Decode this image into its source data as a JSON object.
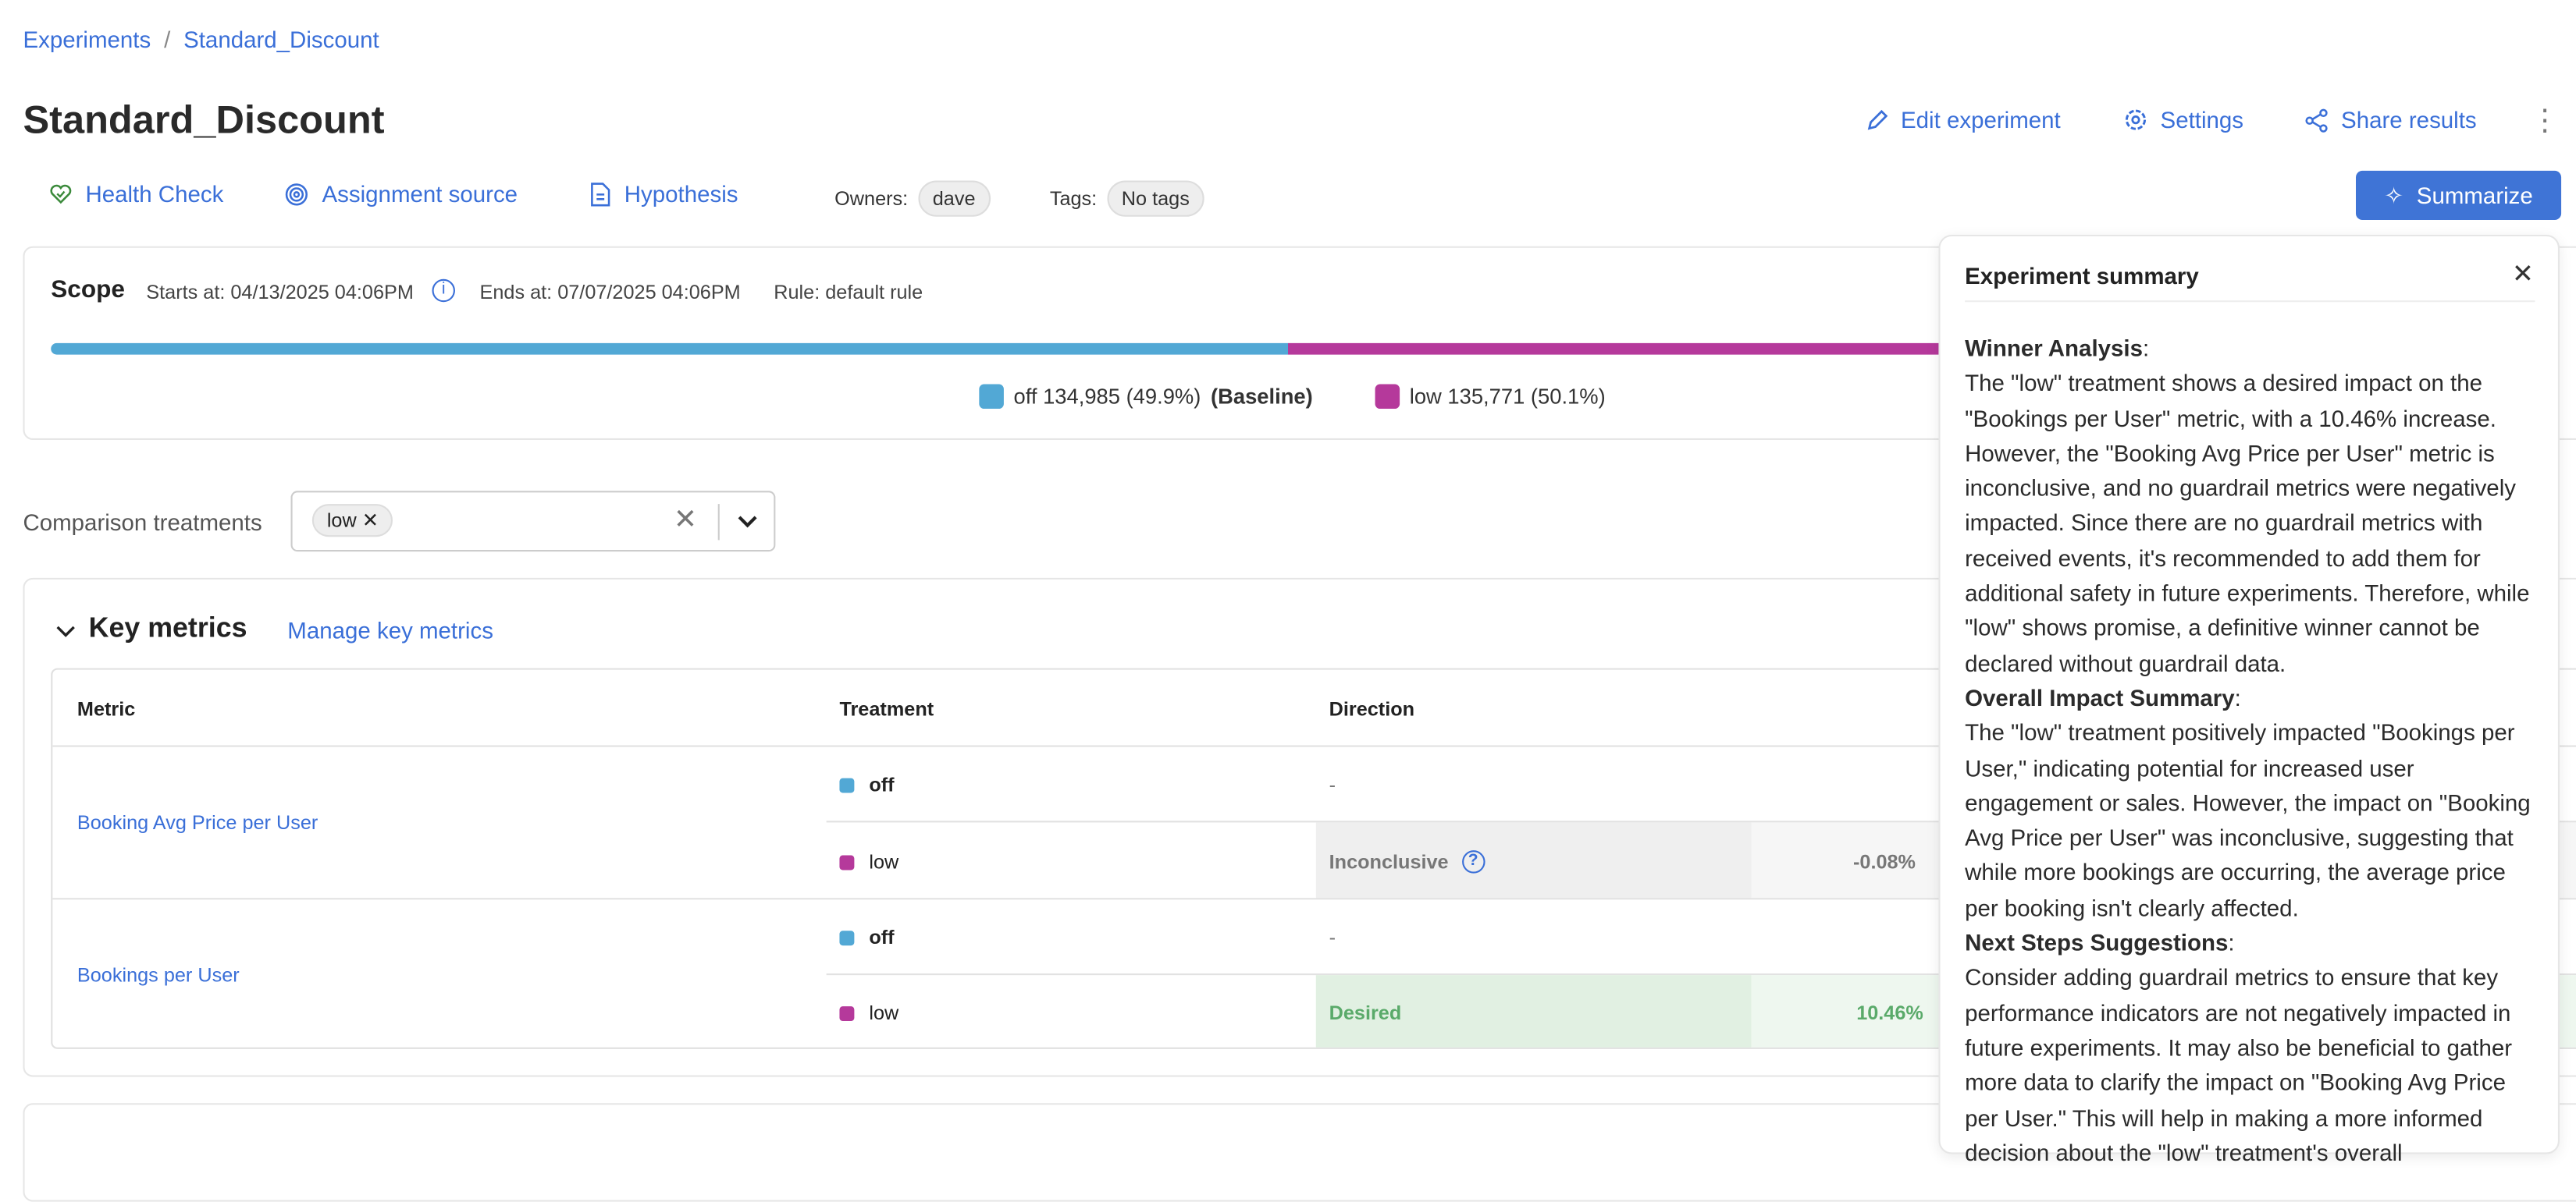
{
  "breadcrumb": {
    "items": [
      "Experiments",
      "Standard_Discount"
    ],
    "separator": "/"
  },
  "header": {
    "title": "Standard_Discount",
    "actions": {
      "edit": "Edit experiment",
      "settings": "Settings",
      "share": "Share results"
    }
  },
  "subnav": {
    "health": "Health Check",
    "assignment": "Assignment source",
    "hypothesis": "Hypothesis",
    "owners_label": "Owners:",
    "owner": "dave",
    "tags_label": "Tags:",
    "tags": "No tags",
    "summarize": "Summarize"
  },
  "scope": {
    "title": "Scope",
    "starts": "Starts at: 04/13/2025 04:06PM",
    "ends": "Ends at: 07/07/2025 04:06PM",
    "rule": "Rule: default rule",
    "treatments": [
      {
        "label": "off 134,985 (49.9%)",
        "baseline": "(Baseline)",
        "share": 49.9,
        "color": "#52a8d5"
      },
      {
        "label": "low 135,771 (50.1%)",
        "share": 50.1,
        "color": "#b5399b"
      }
    ]
  },
  "comparison": {
    "label": "Comparison treatments",
    "selected": "low"
  },
  "key_metrics": {
    "title": "Key metrics",
    "manage": "Manage key metrics",
    "columns": [
      "Metric",
      "Treatment",
      "Direction"
    ],
    "rows": [
      {
        "metric": "Booking Avg Price per User",
        "off_direction": "-",
        "low_direction": "Inconclusive",
        "low_value": "-0.08%"
      },
      {
        "metric": "Bookings per User",
        "off_direction": "-",
        "low_direction": "Desired",
        "low_value": "10.46%"
      }
    ],
    "treatments": [
      "off",
      "low"
    ]
  },
  "summary": {
    "title": "Experiment summary",
    "sections": [
      {
        "heading": "Winner Analysis",
        "text": "The \"low\" treatment shows a desired impact on the \"Bookings per User\" metric, with a 10.46% increase. However, the \"Booking Avg Price per User\" metric is inconclusive, and no guardrail metrics were negatively impacted. Since there are no guardrail metrics with received events, it's recommended to add them for additional safety in future experiments. Therefore, while \"low\" shows promise, a definitive winner cannot be declared without guardrail data."
      },
      {
        "heading": "Overall Impact Summary",
        "text": "The \"low\" treatment positively impacted \"Bookings per User,\" indicating potential for increased user engagement or sales. However, the impact on \"Booking Avg Price per User\" was inconclusive, suggesting that while more bookings are occurring, the average price per booking isn't clearly affected."
      },
      {
        "heading": "Next Steps Suggestions",
        "text": "Consider adding guardrail metrics to ensure that key performance indicators are not negatively impacted in future experiments. It may also be beneficial to gather more data to clarify the impact on \"Booking Avg Price per User.\" This will help in making a more informed decision about the \"low\" treatment's overall"
      }
    ]
  }
}
